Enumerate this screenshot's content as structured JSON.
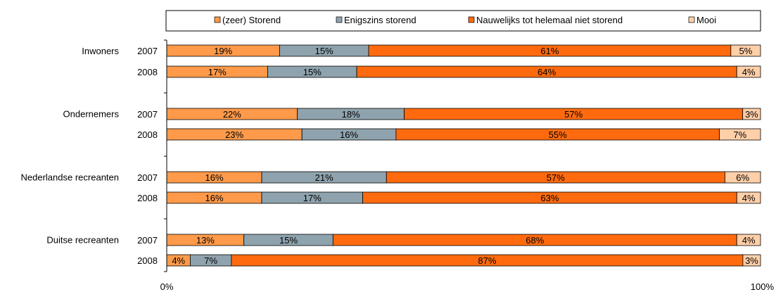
{
  "chart_data": {
    "type": "bar",
    "orientation": "horizontal",
    "stacked": true,
    "normalized": true,
    "legend_position": "top",
    "groups": [
      "Inwoners",
      "Ondernemers",
      "Nederlandse recreanten",
      "Duitse recreanten"
    ],
    "years": [
      "2007",
      "2008"
    ],
    "categories": [
      "Inwoners 2007",
      "Inwoners 2008",
      "Ondernemers 2007",
      "Ondernemers 2008",
      "Nederlandse recreanten 2007",
      "Nederlandse recreanten 2008",
      "Duitse recreanten 2007",
      "Duitse recreanten 2008"
    ],
    "series": [
      {
        "name": "(zeer) Storend",
        "color": "#FF9A4A",
        "values": [
          19,
          17,
          22,
          23,
          16,
          16,
          13,
          4
        ]
      },
      {
        "name": "Enigszins storend",
        "color": "#8FA3AE",
        "values": [
          15,
          15,
          18,
          16,
          21,
          17,
          15,
          7
        ]
      },
      {
        "name": "Nauwelijks tot helemaal niet storend",
        "color": "#FF6A0E",
        "values": [
          61,
          64,
          57,
          55,
          57,
          63,
          68,
          87
        ]
      },
      {
        "name": "Mooi",
        "color": "#FFCFA8",
        "values": [
          5,
          4,
          3,
          7,
          6,
          4,
          4,
          3
        ]
      }
    ],
    "xlim": [
      0,
      100
    ],
    "x_tick_labels": [
      "0%",
      "100%"
    ],
    "value_suffix": "%"
  }
}
